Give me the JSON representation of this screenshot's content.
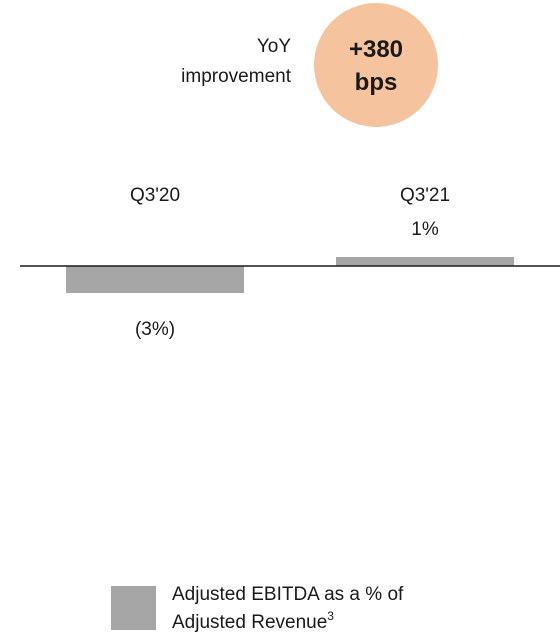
{
  "chart_data": {
    "type": "bar",
    "title": "",
    "xlabel": "",
    "ylabel": "",
    "categories": [
      "Q3'20",
      "Q3'21"
    ],
    "series": [
      {
        "name": "Adjusted EBITDA as a % of Adjusted Revenue",
        "name_lines": [
          "Adjusted EBITDA as a % of",
          "Adjusted Revenue"
        ],
        "footnote": "3",
        "values": [
          -3,
          1
        ],
        "data_labels": [
          "(3%)",
          "1%"
        ],
        "color": "#a6a6a6"
      }
    ],
    "ylim": [
      -3,
      1
    ],
    "grid": false,
    "legend": "bottom",
    "annotation": {
      "label_lines": [
        "YoY",
        "improvement"
      ],
      "value_lines": [
        "+380",
        "bps"
      ],
      "color": "#f5c39d"
    },
    "axis_color": "#1a1a1a"
  }
}
